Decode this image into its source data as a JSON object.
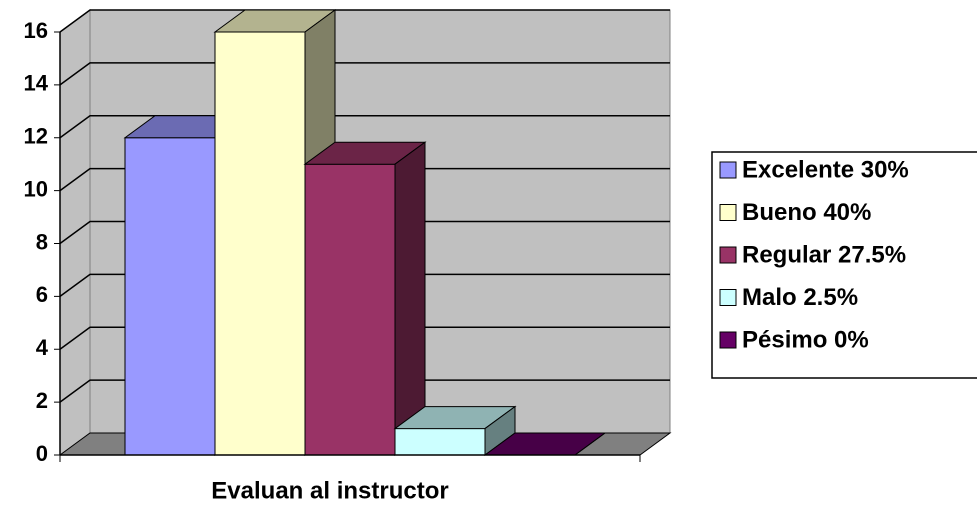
{
  "chart_data": {
    "type": "bar3d",
    "categories": [
      "Evaluan al instructor"
    ],
    "series": [
      {
        "name": "Excelente 30%",
        "color": "#9999ff",
        "values": [
          12
        ]
      },
      {
        "name": "Bueno 40%",
        "color": "#ffffcc",
        "values": [
          16
        ]
      },
      {
        "name": "Regular 27.5%",
        "color": "#993366",
        "values": [
          11
        ]
      },
      {
        "name": "Malo 2.5%",
        "color": "#ccffff",
        "values": [
          1
        ]
      },
      {
        "name": "Pésimo 0%",
        "color": "#660066",
        "values": [
          0
        ]
      }
    ],
    "ylim": [
      0,
      16
    ],
    "yticks": [
      0,
      2,
      4,
      6,
      8,
      10,
      12,
      14,
      16
    ],
    "grid": true,
    "legend": "right"
  }
}
